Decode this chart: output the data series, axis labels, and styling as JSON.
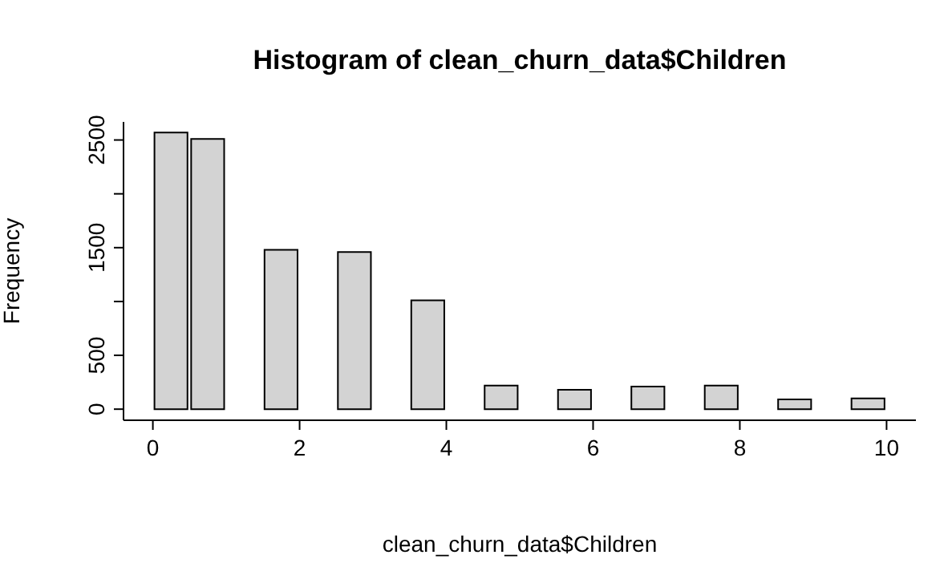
{
  "chart_data": {
    "type": "histogram",
    "title": "Histogram of clean_churn_data$Children",
    "xlabel": "clean_churn_data$Children",
    "ylabel": "Frequency",
    "bins": [
      0,
      0.5,
      1,
      1.5,
      2,
      2.5,
      3,
      3.5,
      4,
      4.5,
      5,
      5.5,
      6,
      6.5,
      7,
      7.5,
      8,
      8.5,
      9,
      9.5,
      10
    ],
    "values": [
      2570,
      2510,
      0,
      1480,
      0,
      1460,
      0,
      1010,
      0,
      220,
      0,
      180,
      0,
      210,
      0,
      220,
      0,
      90,
      0,
      100
    ],
    "color": "#d3d3d3",
    "xlim": [
      -0.4,
      10.4
    ],
    "xticks": [
      0,
      2,
      4,
      6,
      8,
      10
    ],
    "ylim": [
      -103,
      2668
    ],
    "yticks": [
      0,
      500,
      {
        "value": 1000,
        "label": null
      },
      1500,
      {
        "value": 2000,
        "label": null
      },
      2500
    ]
  }
}
